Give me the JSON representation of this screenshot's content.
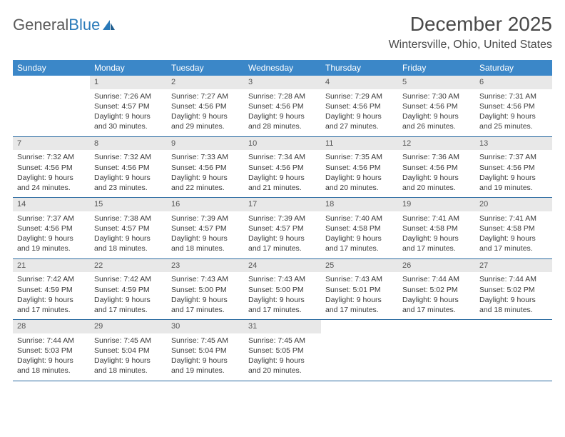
{
  "brand": {
    "part1": "General",
    "part2": "Blue"
  },
  "title": "December 2025",
  "location": "Wintersville, Ohio, United States",
  "colors": {
    "header_bg": "#3b87c8",
    "header_text": "#ffffff",
    "daynum_bg": "#e8e8e8",
    "rule": "#2a6aa0",
    "body_text": "#3a3a3a"
  },
  "day_headers": [
    "Sunday",
    "Monday",
    "Tuesday",
    "Wednesday",
    "Thursday",
    "Friday",
    "Saturday"
  ],
  "weeks": [
    [
      {
        "n": "",
        "sr": "",
        "ss": "",
        "dl": ""
      },
      {
        "n": "1",
        "sr": "Sunrise: 7:26 AM",
        "ss": "Sunset: 4:57 PM",
        "dl": "Daylight: 9 hours and 30 minutes."
      },
      {
        "n": "2",
        "sr": "Sunrise: 7:27 AM",
        "ss": "Sunset: 4:56 PM",
        "dl": "Daylight: 9 hours and 29 minutes."
      },
      {
        "n": "3",
        "sr": "Sunrise: 7:28 AM",
        "ss": "Sunset: 4:56 PM",
        "dl": "Daylight: 9 hours and 28 minutes."
      },
      {
        "n": "4",
        "sr": "Sunrise: 7:29 AM",
        "ss": "Sunset: 4:56 PM",
        "dl": "Daylight: 9 hours and 27 minutes."
      },
      {
        "n": "5",
        "sr": "Sunrise: 7:30 AM",
        "ss": "Sunset: 4:56 PM",
        "dl": "Daylight: 9 hours and 26 minutes."
      },
      {
        "n": "6",
        "sr": "Sunrise: 7:31 AM",
        "ss": "Sunset: 4:56 PM",
        "dl": "Daylight: 9 hours and 25 minutes."
      }
    ],
    [
      {
        "n": "7",
        "sr": "Sunrise: 7:32 AM",
        "ss": "Sunset: 4:56 PM",
        "dl": "Daylight: 9 hours and 24 minutes."
      },
      {
        "n": "8",
        "sr": "Sunrise: 7:32 AM",
        "ss": "Sunset: 4:56 PM",
        "dl": "Daylight: 9 hours and 23 minutes."
      },
      {
        "n": "9",
        "sr": "Sunrise: 7:33 AM",
        "ss": "Sunset: 4:56 PM",
        "dl": "Daylight: 9 hours and 22 minutes."
      },
      {
        "n": "10",
        "sr": "Sunrise: 7:34 AM",
        "ss": "Sunset: 4:56 PM",
        "dl": "Daylight: 9 hours and 21 minutes."
      },
      {
        "n": "11",
        "sr": "Sunrise: 7:35 AM",
        "ss": "Sunset: 4:56 PM",
        "dl": "Daylight: 9 hours and 20 minutes."
      },
      {
        "n": "12",
        "sr": "Sunrise: 7:36 AM",
        "ss": "Sunset: 4:56 PM",
        "dl": "Daylight: 9 hours and 20 minutes."
      },
      {
        "n": "13",
        "sr": "Sunrise: 7:37 AM",
        "ss": "Sunset: 4:56 PM",
        "dl": "Daylight: 9 hours and 19 minutes."
      }
    ],
    [
      {
        "n": "14",
        "sr": "Sunrise: 7:37 AM",
        "ss": "Sunset: 4:56 PM",
        "dl": "Daylight: 9 hours and 19 minutes."
      },
      {
        "n": "15",
        "sr": "Sunrise: 7:38 AM",
        "ss": "Sunset: 4:57 PM",
        "dl": "Daylight: 9 hours and 18 minutes."
      },
      {
        "n": "16",
        "sr": "Sunrise: 7:39 AM",
        "ss": "Sunset: 4:57 PM",
        "dl": "Daylight: 9 hours and 18 minutes."
      },
      {
        "n": "17",
        "sr": "Sunrise: 7:39 AM",
        "ss": "Sunset: 4:57 PM",
        "dl": "Daylight: 9 hours and 17 minutes."
      },
      {
        "n": "18",
        "sr": "Sunrise: 7:40 AM",
        "ss": "Sunset: 4:58 PM",
        "dl": "Daylight: 9 hours and 17 minutes."
      },
      {
        "n": "19",
        "sr": "Sunrise: 7:41 AM",
        "ss": "Sunset: 4:58 PM",
        "dl": "Daylight: 9 hours and 17 minutes."
      },
      {
        "n": "20",
        "sr": "Sunrise: 7:41 AM",
        "ss": "Sunset: 4:58 PM",
        "dl": "Daylight: 9 hours and 17 minutes."
      }
    ],
    [
      {
        "n": "21",
        "sr": "Sunrise: 7:42 AM",
        "ss": "Sunset: 4:59 PM",
        "dl": "Daylight: 9 hours and 17 minutes."
      },
      {
        "n": "22",
        "sr": "Sunrise: 7:42 AM",
        "ss": "Sunset: 4:59 PM",
        "dl": "Daylight: 9 hours and 17 minutes."
      },
      {
        "n": "23",
        "sr": "Sunrise: 7:43 AM",
        "ss": "Sunset: 5:00 PM",
        "dl": "Daylight: 9 hours and 17 minutes."
      },
      {
        "n": "24",
        "sr": "Sunrise: 7:43 AM",
        "ss": "Sunset: 5:00 PM",
        "dl": "Daylight: 9 hours and 17 minutes."
      },
      {
        "n": "25",
        "sr": "Sunrise: 7:43 AM",
        "ss": "Sunset: 5:01 PM",
        "dl": "Daylight: 9 hours and 17 minutes."
      },
      {
        "n": "26",
        "sr": "Sunrise: 7:44 AM",
        "ss": "Sunset: 5:02 PM",
        "dl": "Daylight: 9 hours and 17 minutes."
      },
      {
        "n": "27",
        "sr": "Sunrise: 7:44 AM",
        "ss": "Sunset: 5:02 PM",
        "dl": "Daylight: 9 hours and 18 minutes."
      }
    ],
    [
      {
        "n": "28",
        "sr": "Sunrise: 7:44 AM",
        "ss": "Sunset: 5:03 PM",
        "dl": "Daylight: 9 hours and 18 minutes."
      },
      {
        "n": "29",
        "sr": "Sunrise: 7:45 AM",
        "ss": "Sunset: 5:04 PM",
        "dl": "Daylight: 9 hours and 18 minutes."
      },
      {
        "n": "30",
        "sr": "Sunrise: 7:45 AM",
        "ss": "Sunset: 5:04 PM",
        "dl": "Daylight: 9 hours and 19 minutes."
      },
      {
        "n": "31",
        "sr": "Sunrise: 7:45 AM",
        "ss": "Sunset: 5:05 PM",
        "dl": "Daylight: 9 hours and 20 minutes."
      },
      {
        "n": "",
        "sr": "",
        "ss": "",
        "dl": ""
      },
      {
        "n": "",
        "sr": "",
        "ss": "",
        "dl": ""
      },
      {
        "n": "",
        "sr": "",
        "ss": "",
        "dl": ""
      }
    ]
  ]
}
